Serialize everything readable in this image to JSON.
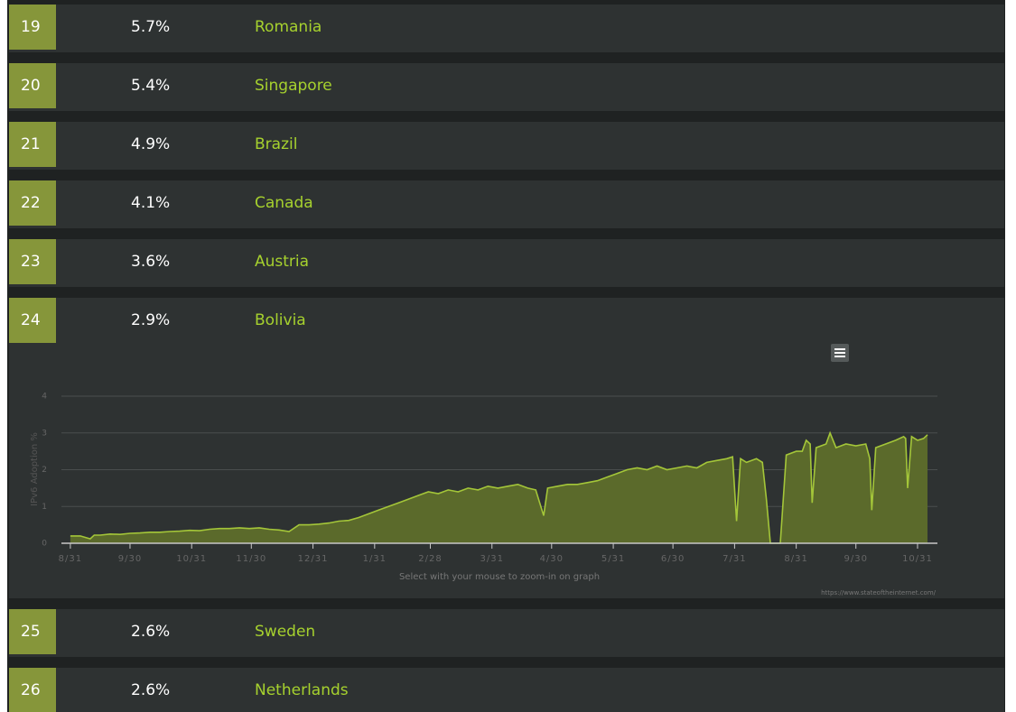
{
  "rows": [
    {
      "rank": 19,
      "percent": "5.7%",
      "country": "Romania"
    },
    {
      "rank": 20,
      "percent": "5.4%",
      "country": "Singapore"
    },
    {
      "rank": 21,
      "percent": "4.9%",
      "country": "Brazil"
    },
    {
      "rank": 22,
      "percent": "4.1%",
      "country": "Canada"
    },
    {
      "rank": 23,
      "percent": "3.6%",
      "country": "Austria"
    },
    {
      "rank": 24,
      "percent": "2.9%",
      "country": "Bolivia"
    },
    {
      "rank": 25,
      "percent": "2.6%",
      "country": "Sweden"
    },
    {
      "rank": 26,
      "percent": "2.6%",
      "country": "Netherlands"
    }
  ],
  "chart_data": {
    "type": "area",
    "y_label": "IPv6 Adoption %",
    "caption": "Select with your mouse to zoom-in on graph",
    "credit": "https://www.stateoftheinternet.com/",
    "color": "#a4c639",
    "fill_color": "#5b6a2b",
    "grid": true,
    "ylim": [
      0,
      4
    ],
    "yticks": [
      0,
      1,
      2,
      3,
      4
    ],
    "xlim": [
      -4.5,
      436
    ],
    "xticks": [
      {
        "value": 0,
        "label": "8/31"
      },
      {
        "value": 30,
        "label": "9/30"
      },
      {
        "value": 61,
        "label": "10/31"
      },
      {
        "value": 91,
        "label": "11/30"
      },
      {
        "value": 122,
        "label": "12/31"
      },
      {
        "value": 153,
        "label": "1/31"
      },
      {
        "value": 181,
        "label": "2/28"
      },
      {
        "value": 212,
        "label": "3/31"
      },
      {
        "value": 242,
        "label": "4/30"
      },
      {
        "value": 273,
        "label": "5/31"
      },
      {
        "value": 303,
        "label": "6/30"
      },
      {
        "value": 334,
        "label": "7/31"
      },
      {
        "value": 365,
        "label": "8/31"
      },
      {
        "value": 395,
        "label": "9/30"
      },
      {
        "value": 426,
        "label": "10/31"
      }
    ],
    "x": [
      0,
      5,
      10,
      12,
      15,
      20,
      25,
      30,
      35,
      40,
      45,
      50,
      55,
      60,
      65,
      70,
      75,
      80,
      85,
      90,
      95,
      100,
      105,
      110,
      115,
      120,
      125,
      130,
      135,
      140,
      145,
      150,
      155,
      160,
      165,
      170,
      175,
      180,
      185,
      190,
      195,
      200,
      205,
      210,
      215,
      220,
      225,
      230,
      234,
      236,
      238,
      240,
      245,
      250,
      255,
      260,
      265,
      270,
      275,
      280,
      285,
      290,
      295,
      300,
      305,
      310,
      315,
      320,
      325,
      330,
      333,
      335,
      337,
      340,
      345,
      348,
      350,
      352,
      355,
      357,
      360,
      365,
      368,
      370,
      372,
      373,
      375,
      380,
      382,
      385,
      390,
      395,
      400,
      402,
      403,
      405,
      410,
      415,
      419,
      420,
      421,
      423,
      426,
      429,
      431
    ],
    "values": [
      0.2,
      0.2,
      0.12,
      0.22,
      0.22,
      0.25,
      0.24,
      0.27,
      0.28,
      0.3,
      0.3,
      0.32,
      0.33,
      0.35,
      0.34,
      0.38,
      0.4,
      0.4,
      0.42,
      0.4,
      0.42,
      0.38,
      0.36,
      0.32,
      0.5,
      0.5,
      0.52,
      0.55,
      0.6,
      0.62,
      0.7,
      0.8,
      0.9,
      1.0,
      1.1,
      1.2,
      1.3,
      1.4,
      1.35,
      1.45,
      1.4,
      1.5,
      1.45,
      1.55,
      1.5,
      1.55,
      1.6,
      1.5,
      1.45,
      1.1,
      0.75,
      1.5,
      1.55,
      1.6,
      1.6,
      1.65,
      1.7,
      1.8,
      1.9,
      2.0,
      2.05,
      2.0,
      2.1,
      2.0,
      2.05,
      2.1,
      2.05,
      2.2,
      2.25,
      2.3,
      2.35,
      0.6,
      2.3,
      2.2,
      2.3,
      2.2,
      1.2,
      0,
      0,
      0,
      2.4,
      2.5,
      2.5,
      2.8,
      2.7,
      1.1,
      2.6,
      2.7,
      3.0,
      2.6,
      2.7,
      2.65,
      2.7,
      2.3,
      0.9,
      2.6,
      2.7,
      2.8,
      2.9,
      2.85,
      1.5,
      2.9,
      2.8,
      2.85,
      2.95
    ]
  }
}
